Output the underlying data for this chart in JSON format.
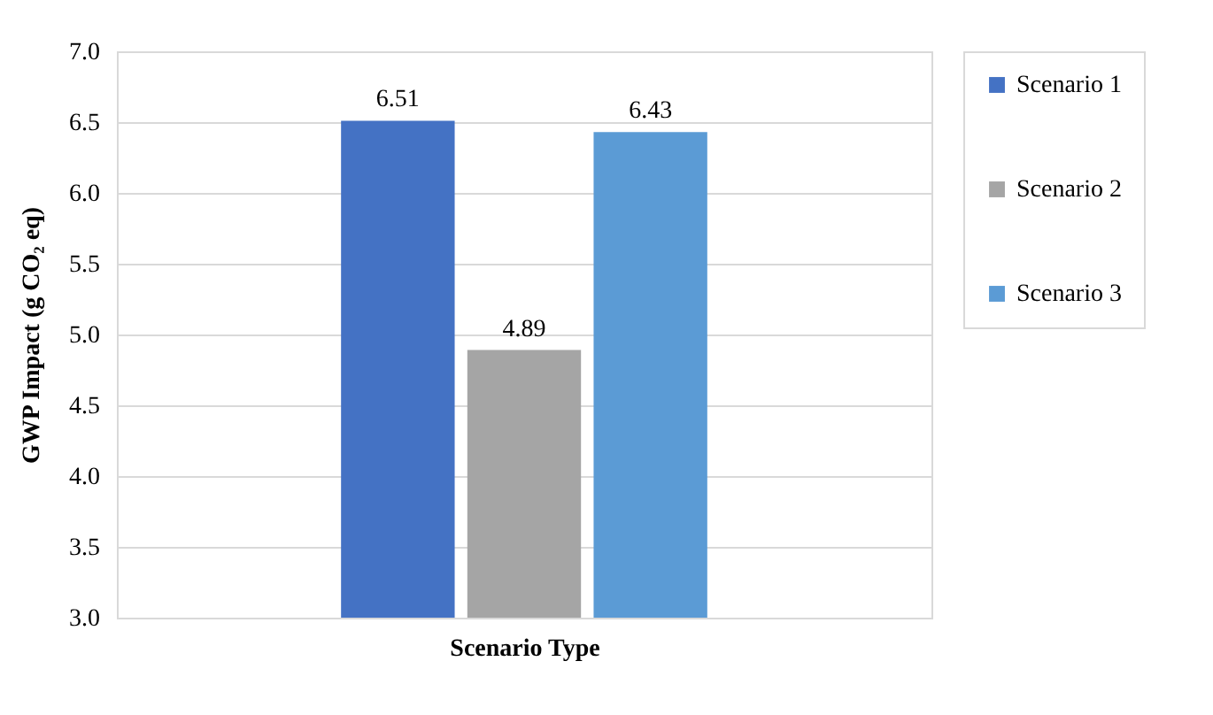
{
  "chart_data": {
    "type": "bar",
    "xlabel": "Scenario Type",
    "ylabel": "GWP Impact (g CO₂ eq)",
    "categories": [
      null
    ],
    "series": [
      {
        "name": "Scenario 1",
        "color": "#4472c4",
        "values": [
          6.51
        ]
      },
      {
        "name": "Scenario 2",
        "color": "#a5a5a5",
        "values": [
          4.89
        ]
      },
      {
        "name": "Scenario 3",
        "color": "#5b9bd5",
        "values": [
          6.43
        ]
      }
    ],
    "ylim": [
      3.0,
      7.0
    ],
    "yticks": [
      {
        "value": 3,
        "label": "3.0"
      },
      {
        "value": 3.5,
        "label": "3.5"
      },
      {
        "value": 4,
        "label": "4.0"
      },
      {
        "value": 4.5,
        "label": "4.5"
      },
      {
        "value": 5,
        "label": "5.0"
      },
      {
        "value": 5.5,
        "label": "5.5"
      },
      {
        "value": 6,
        "label": "6.0"
      },
      {
        "value": 6.5,
        "label": "6.5"
      },
      {
        "value": 7,
        "label": "7.0"
      }
    ],
    "grid": "y",
    "legend": "right",
    "data_labels": true,
    "tick_labels": "y"
  }
}
